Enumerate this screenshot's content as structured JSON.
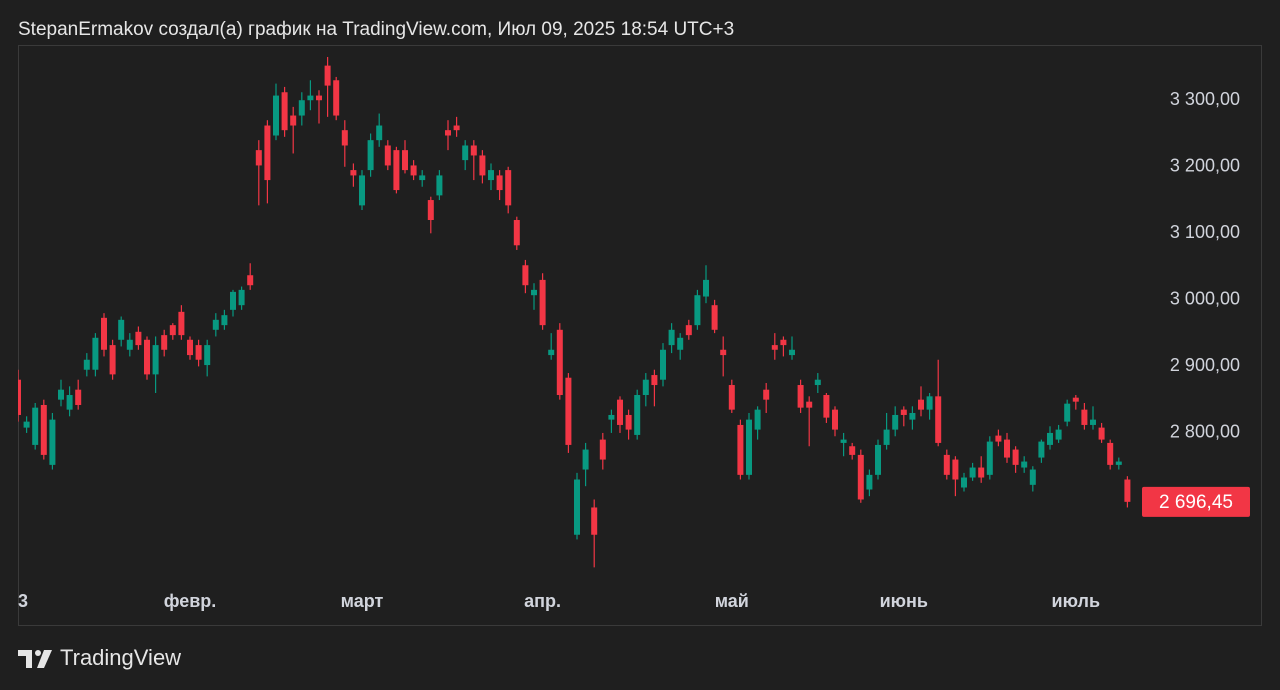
{
  "header": "StepanErmakov создал(а) график на TradingView.com, Июл 09, 2025 18:54 UTC+3",
  "footer": "TradingView",
  "chart_data": {
    "type": "candlestick",
    "up_color": "#089981",
    "down_color": "#f23645",
    "categories": [
      "3",
      null,
      null,
      null,
      null,
      null,
      null,
      null,
      null,
      null,
      null,
      null,
      null,
      null,
      null,
      null,
      null,
      null,
      null,
      null,
      "февр.",
      null,
      null,
      null,
      null,
      null,
      null,
      null,
      null,
      null,
      null,
      null,
      null,
      null,
      null,
      null,
      null,
      null,
      null,
      null,
      "март",
      null,
      null,
      null,
      null,
      null,
      null,
      null,
      null,
      null,
      null,
      null,
      null,
      null,
      null,
      null,
      null,
      null,
      null,
      null,
      null,
      "апр.",
      null,
      null,
      null,
      null,
      null,
      null,
      null,
      null,
      null,
      null,
      null,
      null,
      null,
      null,
      null,
      null,
      null,
      null,
      null,
      null,
      null,
      "май",
      null,
      null,
      null,
      null,
      null,
      null,
      null,
      null,
      null,
      null,
      null,
      null,
      null,
      null,
      null,
      null,
      null,
      null,
      null,
      "июнь",
      null,
      null,
      null,
      null,
      null,
      null,
      null,
      null,
      null,
      null,
      null,
      null,
      null,
      null,
      null,
      null,
      null,
      null,
      null,
      "июль",
      null,
      null,
      null,
      null,
      null,
      null
    ],
    "open": [
      2880,
      2808,
      2782,
      2842,
      2752,
      2850,
      2835,
      2865,
      2895,
      2895,
      2973,
      2932,
      2940,
      2925,
      2952,
      2940,
      2888,
      2947,
      2962,
      2982,
      2940,
      2932,
      2902,
      2955,
      2962,
      2985,
      2992,
      3037,
      3225,
      3262,
      3247,
      3312,
      3277,
      3277,
      3300,
      3307,
      3352,
      3330,
      3255,
      3195,
      3142,
      3195,
      3240,
      3232,
      3225,
      3225,
      3202,
      3180,
      3150,
      3157,
      3255,
      3262,
      3210,
      3232,
      3217,
      3180,
      3187,
      3195,
      3120,
      3052,
      3007,
      3030,
      2917,
      2955,
      2883,
      2647,
      2745,
      2688,
      2790,
      2820,
      2850,
      2827,
      2797,
      2857,
      2887,
      2880,
      2932,
      2925,
      2962,
      2962,
      3005,
      2992,
      2925,
      2872,
      2812,
      2737,
      2805,
      2865,
      2932,
      2940,
      2917,
      2872,
      2847,
      2872,
      2857,
      2835,
      2785,
      2780,
      2767,
      2715,
      2737,
      2782,
      2805,
      2835,
      2820,
      2850,
      2835,
      2855,
      2767,
      2760,
      2718,
      2733,
      2748,
      2737,
      2796,
      2790,
      2775,
      2748,
      2722,
      2763,
      2782,
      2790,
      2817,
      2853,
      2835,
      2812,
      2808,
      2785,
      2752,
      2730
    ],
    "high": [
      2895,
      2825,
      2845,
      2850,
      2830,
      2880,
      2870,
      2880,
      2920,
      2950,
      2980,
      2940,
      2975,
      2950,
      2960,
      2945,
      2945,
      2955,
      2965,
      2992,
      2945,
      2940,
      2940,
      2980,
      2985,
      3015,
      3020,
      3055,
      3240,
      3270,
      3325,
      3320,
      3290,
      3312,
      3330,
      3315,
      3365,
      3335,
      3270,
      3205,
      3195,
      3250,
      3280,
      3240,
      3230,
      3240,
      3210,
      3195,
      3155,
      3195,
      3270,
      3275,
      3240,
      3240,
      3225,
      3205,
      3195,
      3200,
      3125,
      3060,
      3025,
      3040,
      2950,
      2965,
      2890,
      2740,
      2785,
      2700,
      2800,
      2835,
      2855,
      2835,
      2865,
      2890,
      2895,
      2935,
      2965,
      2950,
      2970,
      3015,
      3052,
      3000,
      2945,
      2880,
      2820,
      2830,
      2840,
      2875,
      2950,
      2945,
      2945,
      2880,
      2855,
      2890,
      2860,
      2840,
      2800,
      2785,
      2775,
      2745,
      2790,
      2830,
      2840,
      2840,
      2840,
      2870,
      2860,
      2910,
      2775,
      2765,
      2740,
      2755,
      2765,
      2795,
      2805,
      2800,
      2780,
      2765,
      2750,
      2790,
      2810,
      2812,
      2850,
      2857,
      2845,
      2840,
      2815,
      2790,
      2763,
      2735
    ],
    "low": [
      2817,
      2800,
      2775,
      2760,
      2745,
      2840,
      2825,
      2835,
      2885,
      2885,
      2915,
      2880,
      2930,
      2915,
      2925,
      2880,
      2860,
      2915,
      2940,
      2940,
      2910,
      2900,
      2885,
      2945,
      2955,
      2975,
      2985,
      3015,
      3142,
      3145,
      3240,
      3245,
      3220,
      3262,
      3285,
      3265,
      3275,
      3270,
      3200,
      3170,
      3135,
      3185,
      3230,
      3195,
      3160,
      3190,
      3180,
      3170,
      3100,
      3150,
      3225,
      3245,
      3195,
      3180,
      3175,
      3165,
      3150,
      3130,
      3075,
      3010,
      2985,
      2955,
      2910,
      2850,
      2770,
      2640,
      2720,
      2598,
      2745,
      2800,
      2800,
      2790,
      2790,
      2840,
      2840,
      2870,
      2920,
      2910,
      2940,
      2955,
      2995,
      2950,
      2885,
      2830,
      2730,
      2730,
      2790,
      2830,
      2910,
      2915,
      2910,
      2830,
      2780,
      2860,
      2815,
      2795,
      2765,
      2760,
      2695,
      2705,
      2730,
      2775,
      2795,
      2810,
      2805,
      2825,
      2820,
      2780,
      2730,
      2705,
      2712,
      2728,
      2725,
      2730,
      2780,
      2755,
      2740,
      2740,
      2712,
      2755,
      2775,
      2785,
      2810,
      2835,
      2805,
      2805,
      2785,
      2745,
      2745,
      2688
    ],
    "close": [
      2827,
      2817,
      2838,
      2767,
      2820,
      2865,
      2857,
      2842,
      2910,
      2943,
      2925,
      2888,
      2970,
      2940,
      2932,
      2888,
      2932,
      2925,
      2947,
      2947,
      2917,
      2910,
      2932,
      2970,
      2977,
      3012,
      3015,
      3022,
      3202,
      3180,
      3307,
      3255,
      3262,
      3300,
      3307,
      3300,
      3322,
      3277,
      3232,
      3187,
      3187,
      3240,
      3262,
      3202,
      3165,
      3195,
      3187,
      3187,
      3120,
      3187,
      3247,
      3255,
      3232,
      3217,
      3187,
      3195,
      3165,
      3142,
      3082,
      3022,
      3015,
      2962,
      2925,
      2857,
      2782,
      2730,
      2775,
      2647,
      2760,
      2827,
      2812,
      2805,
      2857,
      2880,
      2872,
      2925,
      2955,
      2943,
      2947,
      3007,
      3030,
      2955,
      2917,
      2835,
      2737,
      2820,
      2835,
      2850,
      2925,
      2932,
      2925,
      2838,
      2838,
      2880,
      2823,
      2805,
      2790,
      2767,
      2700,
      2737,
      2782,
      2805,
      2827,
      2827,
      2830,
      2835,
      2855,
      2785,
      2737,
      2730,
      2733,
      2748,
      2733,
      2787,
      2787,
      2763,
      2752,
      2757,
      2745,
      2787,
      2800,
      2805,
      2844,
      2847,
      2812,
      2820,
      2790,
      2752,
      2757,
      2696.45
    ],
    "last_close_label": "2 696,45",
    "ylim": [
      2582,
      3383
    ],
    "yticks": [
      {
        "value": 2800,
        "label": "2 800,00"
      },
      {
        "value": 2900,
        "label": "2 900,00"
      },
      {
        "value": 3000,
        "label": "3 000,00"
      },
      {
        "value": 3100,
        "label": "3 100,00"
      },
      {
        "value": 3200,
        "label": "3 200,00"
      },
      {
        "value": 3300,
        "label": "3 300,00"
      }
    ],
    "grid": false
  }
}
